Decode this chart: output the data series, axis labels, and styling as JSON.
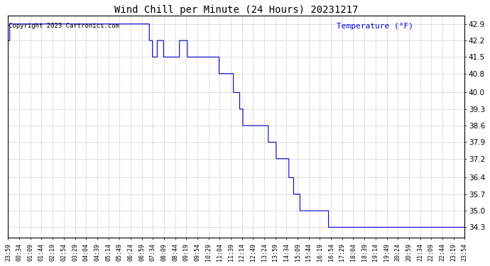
{
  "title": "Wind Chill per Minute (24 Hours) 20231217",
  "ylabel": "Temperature (°F)",
  "copyright": "Copyright 2023 Cartronics.com",
  "line_color": "#0000cc",
  "background_color": "#ffffff",
  "grid_color": "#b0b0b0",
  "text_color": "#000000",
  "ylabel_color": "#0000cc",
  "yticks": [
    34.3,
    35.0,
    35.7,
    36.4,
    37.2,
    37.9,
    38.6,
    39.3,
    40.0,
    40.8,
    41.5,
    42.2,
    42.9
  ],
  "ylim": [
    33.85,
    43.25
  ],
  "x_tick_labels": [
    "23:59",
    "00:34",
    "01:09",
    "01:44",
    "02:19",
    "02:54",
    "03:29",
    "04:04",
    "04:39",
    "05:14",
    "05:49",
    "06:24",
    "06:59",
    "07:34",
    "08:09",
    "08:44",
    "09:19",
    "09:54",
    "10:29",
    "11:04",
    "11:39",
    "12:14",
    "12:49",
    "13:24",
    "13:59",
    "14:34",
    "15:09",
    "15:44",
    "16:19",
    "16:54",
    "17:29",
    "18:04",
    "18:39",
    "19:14",
    "19:49",
    "20:24",
    "20:59",
    "21:34",
    "22:09",
    "22:44",
    "23:19",
    "23:54"
  ],
  "n_minutes": 1440,
  "segment_breakpoints": [
    [
      0,
      42.2
    ],
    [
      5,
      42.9
    ],
    [
      35,
      42.9
    ],
    [
      70,
      42.9
    ],
    [
      105,
      42.9
    ],
    [
      140,
      42.9
    ],
    [
      175,
      42.9
    ],
    [
      210,
      42.9
    ],
    [
      245,
      42.9
    ],
    [
      280,
      42.9
    ],
    [
      315,
      42.9
    ],
    [
      350,
      42.9
    ],
    [
      385,
      42.9
    ],
    [
      420,
      42.9
    ],
    [
      430,
      42.9
    ],
    [
      445,
      42.2
    ],
    [
      455,
      41.5
    ],
    [
      460,
      41.5
    ],
    [
      470,
      42.2
    ],
    [
      475,
      42.2
    ],
    [
      480,
      42.2
    ],
    [
      490,
      41.5
    ],
    [
      500,
      41.5
    ],
    [
      510,
      41.5
    ],
    [
      520,
      41.5
    ],
    [
      525,
      41.5
    ],
    [
      540,
      42.2
    ],
    [
      555,
      42.2
    ],
    [
      565,
      41.5
    ],
    [
      570,
      41.5
    ],
    [
      575,
      41.5
    ],
    [
      580,
      41.5
    ],
    [
      590,
      41.5
    ],
    [
      600,
      41.5
    ],
    [
      610,
      41.5
    ],
    [
      620,
      41.5
    ],
    [
      630,
      41.5
    ],
    [
      640,
      41.5
    ],
    [
      650,
      41.5
    ],
    [
      660,
      41.5
    ],
    [
      665,
      40.8
    ],
    [
      680,
      40.8
    ],
    [
      690,
      40.8
    ],
    [
      700,
      40.8
    ],
    [
      710,
      40.0
    ],
    [
      720,
      40.0
    ],
    [
      730,
      39.3
    ],
    [
      740,
      38.6
    ],
    [
      750,
      38.6
    ],
    [
      760,
      38.6
    ],
    [
      770,
      38.6
    ],
    [
      780,
      38.6
    ],
    [
      790,
      38.6
    ],
    [
      800,
      38.6
    ],
    [
      810,
      38.6
    ],
    [
      820,
      37.9
    ],
    [
      830,
      37.9
    ],
    [
      835,
      37.9
    ],
    [
      840,
      37.9
    ],
    [
      845,
      37.2
    ],
    [
      850,
      37.2
    ],
    [
      855,
      37.2
    ],
    [
      860,
      37.2
    ],
    [
      865,
      37.2
    ],
    [
      870,
      37.2
    ],
    [
      875,
      37.2
    ],
    [
      880,
      37.2
    ],
    [
      885,
      36.4
    ],
    [
      890,
      36.4
    ],
    [
      895,
      36.4
    ],
    [
      900,
      35.7
    ],
    [
      905,
      35.7
    ],
    [
      910,
      35.7
    ],
    [
      920,
      35.0
    ],
    [
      925,
      35.0
    ],
    [
      930,
      35.0
    ],
    [
      935,
      35.0
    ],
    [
      940,
      35.0
    ],
    [
      945,
      35.0
    ],
    [
      960,
      35.0
    ],
    [
      970,
      35.0
    ],
    [
      975,
      35.0
    ],
    [
      980,
      35.0
    ],
    [
      990,
      35.0
    ],
    [
      1000,
      35.0
    ],
    [
      1010,
      34.3
    ],
    [
      1439,
      34.3
    ]
  ]
}
